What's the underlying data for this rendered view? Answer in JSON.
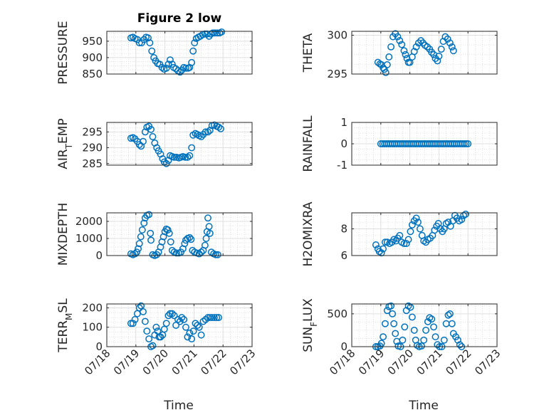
{
  "figure": {
    "title": "Figure 2 low",
    "marker_color": "#0072BD",
    "x_tick_labels": [
      "07/18",
      "07/19",
      "07/20",
      "07/21",
      "07/22",
      "07/23"
    ],
    "xlabel": "Time"
  },
  "chart_data": [
    {
      "type": "scatter",
      "ylabel": "PRESSURE",
      "ylim": [
        850,
        980
      ],
      "yticks": [
        850,
        900,
        950
      ],
      "xlim": [
        "07/18",
        "07/23"
      ],
      "grid": true,
      "points": [
        [
          0.83,
          960
        ],
        [
          0.9,
          962
        ],
        [
          0.97,
          958
        ],
        [
          1.05,
          955
        ],
        [
          1.12,
          945
        ],
        [
          1.2,
          945
        ],
        [
          1.28,
          955
        ],
        [
          1.35,
          962
        ],
        [
          1.42,
          960
        ],
        [
          1.48,
          945
        ],
        [
          1.55,
          920
        ],
        [
          1.62,
          900
        ],
        [
          1.68,
          890
        ],
        [
          1.75,
          882
        ],
        [
          1.82,
          880
        ],
        [
          1.9,
          870
        ],
        [
          1.97,
          865
        ],
        [
          2.05,
          868
        ],
        [
          2.12,
          880
        ],
        [
          2.18,
          893
        ],
        [
          2.25,
          880
        ],
        [
          2.3,
          870
        ],
        [
          2.38,
          866
        ],
        [
          2.45,
          860
        ],
        [
          2.52,
          856
        ],
        [
          2.58,
          862
        ],
        [
          2.65,
          870
        ],
        [
          2.72,
          868
        ],
        [
          2.8,
          868
        ],
        [
          2.85,
          870
        ],
        [
          2.92,
          885
        ],
        [
          2.97,
          920
        ],
        [
          3.02,
          945
        ],
        [
          3.08,
          958
        ],
        [
          3.15,
          962
        ],
        [
          3.22,
          965
        ],
        [
          3.3,
          970
        ],
        [
          3.38,
          972
        ],
        [
          3.45,
          972
        ],
        [
          3.52,
          965
        ],
        [
          3.58,
          972
        ],
        [
          3.65,
          975
        ],
        [
          3.72,
          975
        ],
        [
          3.8,
          975
        ],
        [
          3.88,
          975
        ],
        [
          3.95,
          978
        ]
      ]
    },
    {
      "type": "scatter",
      "ylabel": "THETA",
      "ylim": [
        295,
        300.5
      ],
      "yticks": [
        295,
        300
      ],
      "xlim": [
        "07/18",
        "07/23"
      ],
      "grid": true,
      "points": [
        [
          0.9,
          296.5
        ],
        [
          0.97,
          296.3
        ],
        [
          1.02,
          296.2
        ],
        [
          1.08,
          295.8
        ],
        [
          1.12,
          295.6
        ],
        [
          1.17,
          295.2
        ],
        [
          1.22,
          296.2
        ],
        [
          1.28,
          297.2
        ],
        [
          1.35,
          298.5
        ],
        [
          1.42,
          299.8
        ],
        [
          1.5,
          300.2
        ],
        [
          1.58,
          299.8
        ],
        [
          1.65,
          299.3
        ],
        [
          1.72,
          298.8
        ],
        [
          1.8,
          298.0
        ],
        [
          1.85,
          297.5
        ],
        [
          1.9,
          297.0
        ],
        [
          1.95,
          296.5
        ],
        [
          2.0,
          296.5
        ],
        [
          2.08,
          297.2
        ],
        [
          2.15,
          297.9
        ],
        [
          2.22,
          298.5
        ],
        [
          2.3,
          299.0
        ],
        [
          2.38,
          299.3
        ],
        [
          2.45,
          299.0
        ],
        [
          2.52,
          298.7
        ],
        [
          2.6,
          298.5
        ],
        [
          2.68,
          298.2
        ],
        [
          2.75,
          297.8
        ],
        [
          2.82,
          297.5
        ],
        [
          2.88,
          297.0
        ],
        [
          2.95,
          296.7
        ],
        [
          3.0,
          297.3
        ],
        [
          3.08,
          298.2
        ],
        [
          3.15,
          299.2
        ],
        [
          3.22,
          299.8
        ],
        [
          3.3,
          299.5
        ],
        [
          3.38,
          299.0
        ],
        [
          3.45,
          298.5
        ],
        [
          3.5,
          298.0
        ]
      ]
    },
    {
      "type": "scatter",
      "ylabel": "AIR_TEMP",
      "ylim": [
        284.5,
        298
      ],
      "yticks": [
        285,
        290,
        295
      ],
      "xlim": [
        "07/18",
        "07/23"
      ],
      "grid": true,
      "points": [
        [
          0.83,
          293
        ],
        [
          0.9,
          293.2
        ],
        [
          0.97,
          292.8
        ],
        [
          1.05,
          292.0
        ],
        [
          1.12,
          291.0
        ],
        [
          1.18,
          290.5
        ],
        [
          1.25,
          292.0
        ],
        [
          1.32,
          295.0
        ],
        [
          1.38,
          296.5
        ],
        [
          1.45,
          296.8
        ],
        [
          1.52,
          295.8
        ],
        [
          1.58,
          293.5
        ],
        [
          1.65,
          291.5
        ],
        [
          1.72,
          290.0
        ],
        [
          1.78,
          289.0
        ],
        [
          1.85,
          288.0
        ],
        [
          1.92,
          286.5
        ],
        [
          1.98,
          285.5
        ],
        [
          2.05,
          285.0
        ],
        [
          2.12,
          286.0
        ],
        [
          2.18,
          287.5
        ],
        [
          2.25,
          287.2
        ],
        [
          2.32,
          287.0
        ],
        [
          2.4,
          287.0
        ],
        [
          2.48,
          286.8
        ],
        [
          2.55,
          287.0
        ],
        [
          2.62,
          287.2
        ],
        [
          2.7,
          287.0
        ],
        [
          2.78,
          287.0
        ],
        [
          2.85,
          287.5
        ],
        [
          2.92,
          290.0
        ],
        [
          2.97,
          294.0
        ],
        [
          3.05,
          294.5
        ],
        [
          3.12,
          294.2
        ],
        [
          3.18,
          293.8
        ],
        [
          3.25,
          293.5
        ],
        [
          3.32,
          294.2
        ],
        [
          3.4,
          295.0
        ],
        [
          3.48,
          295.0
        ],
        [
          3.55,
          295.5
        ],
        [
          3.62,
          297.0
        ],
        [
          3.7,
          297.2
        ],
        [
          3.78,
          296.8
        ],
        [
          3.85,
          296.5
        ],
        [
          3.92,
          296.0
        ]
      ]
    },
    {
      "type": "scatter",
      "ylabel": "RAINFALL",
      "ylim": [
        -1,
        1
      ],
      "yticks": [
        -1,
        0,
        1
      ],
      "xlim": [
        "07/18",
        "07/23"
      ],
      "grid": true,
      "x_range": [
        1.0,
        4.0
      ],
      "constant_y": 0
    },
    {
      "type": "scatter",
      "ylabel": "MIXDEPTH",
      "ylim": [
        0,
        2500
      ],
      "yticks": [
        0,
        1000,
        2000
      ],
      "xlim": [
        "07/18",
        "07/23"
      ],
      "grid": true,
      "points": [
        [
          0.83,
          100
        ],
        [
          0.9,
          50
        ],
        [
          0.97,
          100
        ],
        [
          1.03,
          200
        ],
        [
          1.08,
          400
        ],
        [
          1.12,
          700
        ],
        [
          1.17,
          1100
        ],
        [
          1.22,
          1500
        ],
        [
          1.28,
          1900
        ],
        [
          1.32,
          2200
        ],
        [
          1.38,
          2350
        ],
        [
          1.45,
          2400
        ],
        [
          1.5,
          1300
        ],
        [
          1.52,
          900
        ],
        [
          1.58,
          50
        ],
        [
          1.65,
          0
        ],
        [
          1.72,
          50
        ],
        [
          1.78,
          200
        ],
        [
          1.85,
          500
        ],
        [
          1.9,
          800
        ],
        [
          1.95,
          1100
        ],
        [
          2.0,
          1400
        ],
        [
          2.05,
          1550
        ],
        [
          2.1,
          1500
        ],
        [
          2.15,
          1300
        ],
        [
          2.2,
          800
        ],
        [
          2.25,
          300
        ],
        [
          2.32,
          200
        ],
        [
          2.4,
          150
        ],
        [
          2.48,
          150
        ],
        [
          2.55,
          200
        ],
        [
          2.62,
          400
        ],
        [
          2.68,
          700
        ],
        [
          2.72,
          900
        ],
        [
          2.78,
          1000
        ],
        [
          2.85,
          1050
        ],
        [
          2.9,
          950
        ],
        [
          2.95,
          300
        ],
        [
          3.02,
          200
        ],
        [
          3.1,
          150
        ],
        [
          3.18,
          100
        ],
        [
          3.25,
          200
        ],
        [
          3.32,
          300
        ],
        [
          3.38,
          600
        ],
        [
          3.42,
          1000
        ],
        [
          3.45,
          1400
        ],
        [
          3.48,
          2200
        ],
        [
          3.52,
          1700
        ],
        [
          3.55,
          1300
        ],
        [
          3.6,
          200
        ],
        [
          3.68,
          100
        ],
        [
          3.75,
          50
        ],
        [
          3.82,
          50
        ]
      ]
    },
    {
      "type": "scatter",
      "ylabel": "H2OMIXRA",
      "ylim": [
        6,
        9.2
      ],
      "yticks": [
        6,
        8
      ],
      "xlim": [
        "07/18",
        "07/23"
      ],
      "grid": true,
      "points": [
        [
          0.83,
          6.8
        ],
        [
          0.9,
          6.5
        ],
        [
          0.95,
          6.3
        ],
        [
          1.02,
          6.2
        ],
        [
          1.08,
          6.5
        ],
        [
          1.15,
          7.0
        ],
        [
          1.22,
          7.0
        ],
        [
          1.3,
          6.9
        ],
        [
          1.38,
          7.0
        ],
        [
          1.45,
          7.2
        ],
        [
          1.52,
          7.1
        ],
        [
          1.58,
          7.3
        ],
        [
          1.65,
          7.5
        ],
        [
          1.72,
          7.0
        ],
        [
          1.8,
          6.9
        ],
        [
          1.88,
          6.9
        ],
        [
          1.95,
          7.2
        ],
        [
          2.02,
          7.8
        ],
        [
          2.08,
          8.3
        ],
        [
          2.15,
          8.6
        ],
        [
          2.22,
          8.8
        ],
        [
          2.28,
          8.5
        ],
        [
          2.35,
          8.0
        ],
        [
          2.42,
          7.5
        ],
        [
          2.48,
          7.1
        ],
        [
          2.55,
          7.0
        ],
        [
          2.62,
          7.2
        ],
        [
          2.7,
          7.3
        ],
        [
          2.78,
          7.5
        ],
        [
          2.85,
          7.9
        ],
        [
          2.92,
          8.2
        ],
        [
          2.98,
          8.4
        ],
        [
          3.05,
          8.0
        ],
        [
          3.12,
          7.8
        ],
        [
          3.18,
          8.0
        ],
        [
          3.25,
          8.4
        ],
        [
          3.32,
          8.5
        ],
        [
          3.4,
          8.2
        ],
        [
          3.48,
          8.6
        ],
        [
          3.55,
          9.0
        ],
        [
          3.62,
          8.8
        ],
        [
          3.7,
          8.6
        ],
        [
          3.78,
          8.7
        ],
        [
          3.85,
          9.0
        ],
        [
          3.92,
          9.1
        ]
      ]
    },
    {
      "type": "scatter",
      "ylabel": "TERR_MSL",
      "ylim": [
        0,
        220
      ],
      "yticks": [
        0,
        100,
        200
      ],
      "xlim": [
        "07/18",
        "07/23"
      ],
      "grid": true,
      "points": [
        [
          0.83,
          120
        ],
        [
          0.9,
          120
        ],
        [
          0.97,
          140
        ],
        [
          1.05,
          170
        ],
        [
          1.12,
          200
        ],
        [
          1.18,
          210
        ],
        [
          1.25,
          180
        ],
        [
          1.32,
          130
        ],
        [
          1.38,
          80
        ],
        [
          1.45,
          40
        ],
        [
          1.52,
          0
        ],
        [
          1.58,
          5
        ],
        [
          1.65,
          60
        ],
        [
          1.7,
          100
        ],
        [
          1.75,
          80
        ],
        [
          1.8,
          50
        ],
        [
          1.85,
          50
        ],
        [
          1.92,
          60
        ],
        [
          1.98,
          90
        ],
        [
          2.05,
          120
        ],
        [
          2.12,
          160
        ],
        [
          2.18,
          170
        ],
        [
          2.25,
          170
        ],
        [
          2.32,
          160
        ],
        [
          2.38,
          110
        ],
        [
          2.45,
          140
        ],
        [
          2.52,
          130
        ],
        [
          2.58,
          150
        ],
        [
          2.65,
          140
        ],
        [
          2.72,
          100
        ],
        [
          2.78,
          50
        ],
        [
          2.85,
          70
        ],
        [
          2.92,
          40
        ],
        [
          2.98,
          80
        ],
        [
          3.05,
          120
        ],
        [
          3.12,
          110
        ],
        [
          3.18,
          100
        ],
        [
          3.25,
          60
        ],
        [
          3.32,
          130
        ],
        [
          3.4,
          140
        ],
        [
          3.48,
          150
        ],
        [
          3.55,
          150
        ],
        [
          3.62,
          150
        ],
        [
          3.7,
          150
        ],
        [
          3.78,
          150
        ],
        [
          3.85,
          150
        ]
      ]
    },
    {
      "type": "scatter",
      "ylabel": "SUN_FLUX",
      "ylim": [
        0,
        650
      ],
      "yticks": [
        0,
        500
      ],
      "xlim": [
        "07/18",
        "07/23"
      ],
      "grid": true,
      "points": [
        [
          0.83,
          0
        ],
        [
          0.9,
          0
        ],
        [
          0.97,
          10
        ],
        [
          1.02,
          50
        ],
        [
          1.08,
          150
        ],
        [
          1.15,
          350
        ],
        [
          1.22,
          550
        ],
        [
          1.28,
          610
        ],
        [
          1.35,
          620
        ],
        [
          1.4,
          500
        ],
        [
          1.45,
          350
        ],
        [
          1.5,
          200
        ],
        [
          1.55,
          80
        ],
        [
          1.6,
          10
        ],
        [
          1.68,
          0
        ],
        [
          1.75,
          100
        ],
        [
          1.82,
          300
        ],
        [
          1.88,
          550
        ],
        [
          1.95,
          620
        ],
        [
          2.02,
          600
        ],
        [
          2.08,
          450
        ],
        [
          2.15,
          250
        ],
        [
          2.2,
          100
        ],
        [
          2.25,
          20
        ],
        [
          2.32,
          0
        ],
        [
          2.4,
          10
        ],
        [
          2.48,
          100
        ],
        [
          2.55,
          250
        ],
        [
          2.62,
          380
        ],
        [
          2.68,
          440
        ],
        [
          2.75,
          420
        ],
        [
          2.82,
          300
        ],
        [
          2.88,
          150
        ],
        [
          2.95,
          30
        ],
        [
          3.02,
          0
        ],
        [
          3.1,
          0
        ],
        [
          3.18,
          100
        ],
        [
          3.25,
          350
        ],
        [
          3.32,
          480
        ],
        [
          3.38,
          500
        ],
        [
          3.45,
          350
        ],
        [
          3.5,
          200
        ],
        [
          3.58,
          150
        ],
        [
          3.65,
          100
        ],
        [
          3.72,
          30
        ],
        [
          3.78,
          0
        ]
      ]
    }
  ]
}
